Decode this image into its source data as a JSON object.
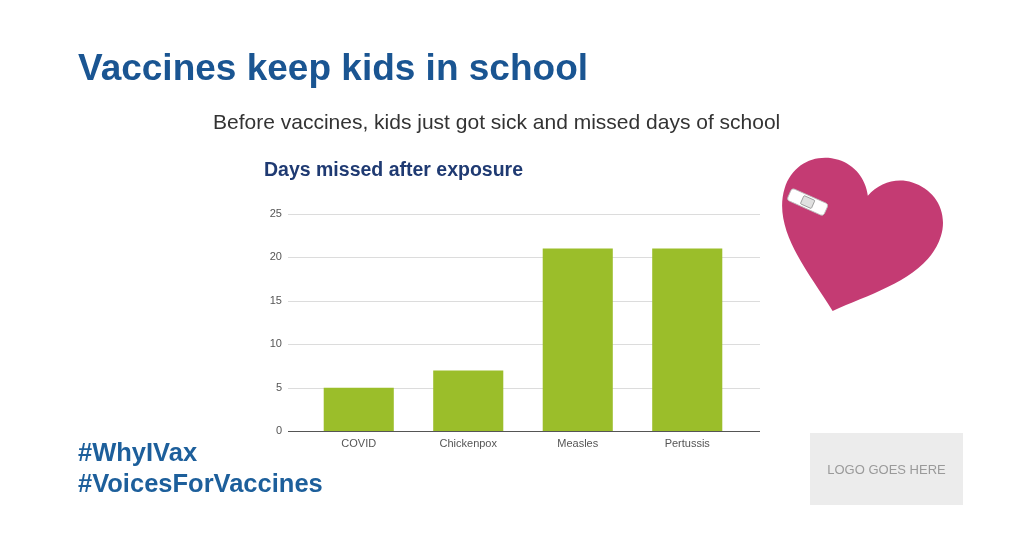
{
  "chart_data": {
    "type": "bar",
    "title": "Vaccines keep kids in school",
    "subtitle": "Before vaccines, kids just got sick and missed days of school",
    "categories": [
      "COVID",
      "Chickenpox",
      "Measles",
      "Pertussis"
    ],
    "values": [
      5,
      7,
      21,
      21
    ],
    "color": "#9bbe2a",
    "ylim": [
      0,
      25
    ],
    "yticks": [
      0,
      5,
      10,
      15,
      20,
      25
    ],
    "grid": "y",
    "annotations": [
      "Days missed after exposure",
      "#WhyIVax",
      "#VoicesForVaccines",
      "LOGO GOES HERE"
    ]
  }
}
